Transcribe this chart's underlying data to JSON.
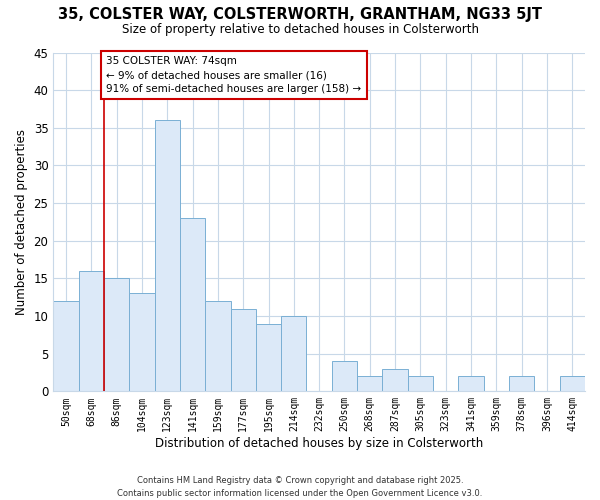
{
  "title": "35, COLSTER WAY, COLSTERWORTH, GRANTHAM, NG33 5JT",
  "subtitle": "Size of property relative to detached houses in Colsterworth",
  "xlabel": "Distribution of detached houses by size in Colsterworth",
  "ylabel": "Number of detached properties",
  "bar_labels": [
    "50sqm",
    "68sqm",
    "86sqm",
    "104sqm",
    "123sqm",
    "141sqm",
    "159sqm",
    "177sqm",
    "195sqm",
    "214sqm",
    "232sqm",
    "250sqm",
    "268sqm",
    "287sqm",
    "305sqm",
    "323sqm",
    "341sqm",
    "359sqm",
    "378sqm",
    "396sqm",
    "414sqm"
  ],
  "bar_values": [
    12,
    16,
    15,
    13,
    36,
    23,
    12,
    11,
    9,
    10,
    0,
    4,
    2,
    3,
    2,
    0,
    2,
    0,
    2,
    0,
    2
  ],
  "bar_color": "#dce9f8",
  "bar_edge_color": "#7aafd4",
  "vline_color": "#cc0000",
  "annotation_title": "35 COLSTER WAY: 74sqm",
  "annotation_line1": "← 9% of detached houses are smaller (16)",
  "annotation_line2": "91% of semi-detached houses are larger (158) →",
  "annotation_box_color": "#ffffff",
  "annotation_box_edge": "#cc0000",
  "ylim": [
    0,
    45
  ],
  "yticks": [
    0,
    5,
    10,
    15,
    20,
    25,
    30,
    35,
    40,
    45
  ],
  "footer1": "Contains HM Land Registry data © Crown copyright and database right 2025.",
  "footer2": "Contains public sector information licensed under the Open Government Licence v3.0.",
  "bg_color": "#ffffff",
  "grid_color": "#c8d8e8"
}
